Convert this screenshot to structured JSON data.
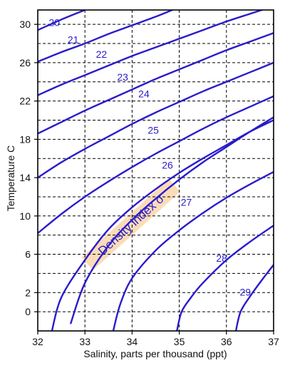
{
  "chart_data": {
    "type": "line",
    "xlabel": "Salinity, parts per thousand (ppt)",
    "ylabel": "Temperature  C",
    "xlim": [
      32,
      37
    ],
    "ylim": [
      -2,
      31.5
    ],
    "x_ticks": [
      32,
      33,
      34,
      35,
      36,
      37
    ],
    "y_ticks": [
      0,
      2,
      6,
      10,
      14,
      18,
      22,
      26,
      30
    ],
    "x_gridlines": [
      33,
      34,
      35,
      36
    ],
    "y_gridlines": [
      0,
      2,
      4,
      6,
      8,
      10,
      12,
      14,
      16,
      18,
      20,
      22,
      24,
      26,
      28,
      30
    ],
    "grid": true,
    "line_color": "#2a1bcc",
    "annotation": {
      "text": "Density index σ",
      "band_color": "#fbdcb8",
      "start": [
        33.05,
        5.0
      ],
      "end": [
        34.9,
        13.2
      ]
    },
    "series": [
      {
        "name": "20",
        "label_at": [
          32.35,
          30.2
        ],
        "points": [
          [
            32.0,
            29.4
          ],
          [
            32.5,
            30.5
          ],
          [
            33.0,
            31.5
          ]
        ]
      },
      {
        "name": "21",
        "label_at": [
          32.75,
          28.4
        ],
        "points": [
          [
            32.0,
            26.1
          ],
          [
            32.5,
            27.1
          ],
          [
            33.0,
            28.0
          ],
          [
            33.5,
            29.0
          ],
          [
            34.0,
            29.9
          ],
          [
            34.5,
            30.8
          ],
          [
            34.85,
            31.5
          ]
        ]
      },
      {
        "name": "22",
        "label_at": [
          33.35,
          26.9
        ],
        "points": [
          [
            32.0,
            22.6
          ],
          [
            32.5,
            23.7
          ],
          [
            33.0,
            24.7
          ],
          [
            33.5,
            25.7
          ],
          [
            34.0,
            26.7
          ],
          [
            34.5,
            27.6
          ],
          [
            35.0,
            28.5
          ],
          [
            35.5,
            29.4
          ],
          [
            36.0,
            30.3
          ],
          [
            36.5,
            31.1
          ],
          [
            36.75,
            31.5
          ]
        ]
      },
      {
        "name": "23",
        "label_at": [
          33.8,
          24.5
        ],
        "points": [
          [
            32.0,
            18.6
          ],
          [
            32.5,
            19.8
          ],
          [
            33.0,
            21.0
          ],
          [
            33.5,
            22.1
          ],
          [
            34.0,
            23.2
          ],
          [
            34.5,
            24.3
          ],
          [
            35.0,
            25.3
          ],
          [
            35.5,
            26.3
          ],
          [
            36.0,
            27.3
          ],
          [
            36.5,
            28.2
          ],
          [
            37.0,
            29.1
          ]
        ]
      },
      {
        "name": "24",
        "label_at": [
          34.25,
          22.75
        ],
        "points": [
          [
            32.0,
            14.0
          ],
          [
            32.5,
            15.6
          ],
          [
            33.0,
            17.0
          ],
          [
            33.5,
            18.3
          ],
          [
            34.0,
            19.6
          ],
          [
            34.5,
            20.8
          ],
          [
            35.0,
            21.9
          ],
          [
            35.5,
            23.0
          ],
          [
            36.0,
            24.0
          ],
          [
            36.5,
            25.0
          ],
          [
            37.0,
            26.0
          ]
        ]
      },
      {
        "name": "25",
        "label_at": [
          34.45,
          18.95
        ],
        "points": [
          [
            32.0,
            8.2
          ],
          [
            32.5,
            10.2
          ],
          [
            33.0,
            12.0
          ],
          [
            33.5,
            13.6
          ],
          [
            34.0,
            15.1
          ],
          [
            34.5,
            16.5
          ],
          [
            35.0,
            17.8
          ],
          [
            35.5,
            19.1
          ],
          [
            36.0,
            20.3
          ],
          [
            36.5,
            21.4
          ],
          [
            37.0,
            22.5
          ]
        ]
      },
      {
        "name": "26",
        "label_at": [
          34.75,
          15.3
        ],
        "points": [
          [
            32.7,
            -1.2
          ],
          [
            33.0,
            3.0
          ],
          [
            33.5,
            6.9
          ],
          [
            34.0,
            9.6
          ],
          [
            34.5,
            11.8
          ],
          [
            35.0,
            13.8
          ],
          [
            35.5,
            15.6
          ],
          [
            36.0,
            17.2
          ],
          [
            36.5,
            18.8
          ],
          [
            37.0,
            20.3
          ]
        ]
      },
      {
        "name": "27",
        "label_at": [
          35.15,
          11.45
        ],
        "points": [
          [
            32.3,
            -2.0
          ],
          [
            32.5,
            1.5
          ],
          [
            33.0,
            5.4
          ],
          [
            33.5,
            8.6
          ],
          [
            34.0,
            10.9
          ],
          [
            34.5,
            12.8
          ],
          [
            35.0,
            14.5
          ],
          [
            35.5,
            16.0
          ],
          [
            36.0,
            17.4
          ],
          [
            36.5,
            18.8
          ],
          [
            37.0,
            20.0
          ]
        ]
      },
      {
        "name": "28",
        "label_at": [
          35.9,
          5.6
        ],
        "points": [
          [
            33.6,
            -2.0
          ],
          [
            33.75,
            0.8
          ],
          [
            34.0,
            3.5
          ],
          [
            34.5,
            6.4
          ],
          [
            35.0,
            8.5
          ],
          [
            35.5,
            10.3
          ],
          [
            36.0,
            11.9
          ],
          [
            36.5,
            13.3
          ],
          [
            37.0,
            14.6
          ]
        ]
      },
      {
        "name": "29",
        "label_at": [
          36.4,
          2.05
        ],
        "points": [
          [
            34.95,
            -2.0
          ],
          [
            35.05,
            0.0
          ],
          [
            35.25,
            1.5
          ],
          [
            35.5,
            3.0
          ],
          [
            36.0,
            5.4
          ],
          [
            36.5,
            7.3
          ],
          [
            37.0,
            9.0
          ]
        ]
      },
      {
        "name": "",
        "label_at": null,
        "points": [
          [
            36.2,
            -2.0
          ],
          [
            36.3,
            0.0
          ],
          [
            36.5,
            1.6
          ],
          [
            36.75,
            3.3
          ],
          [
            37.0,
            4.9
          ]
        ]
      }
    ]
  }
}
